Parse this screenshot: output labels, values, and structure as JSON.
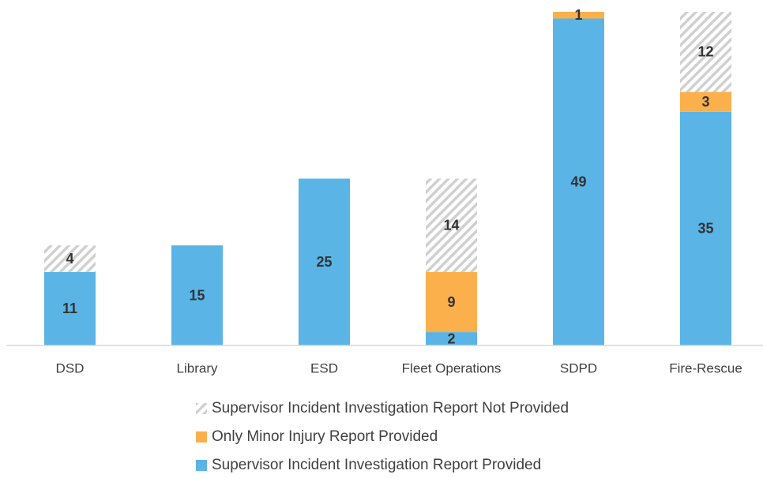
{
  "chart_data": {
    "type": "stacked_bar",
    "categories": [
      "DSD",
      "Library",
      "ESD",
      "Fleet Operations",
      "SDPD",
      "Fire-Rescue"
    ],
    "series": [
      {
        "name": "Supervisor Incident Investigation Report Provided",
        "color": "#5ab4e5",
        "values": [
          11,
          15,
          25,
          2,
          49,
          35
        ]
      },
      {
        "name": "Only Minor Injury Report Provided",
        "color": "#fbb04b",
        "values": [
          null,
          null,
          null,
          9,
          1,
          3
        ]
      },
      {
        "name": "Supervisor Incident Investigation Report Not Provided",
        "color": "#c8c8c8",
        "pattern": "hatch",
        "values": [
          4,
          null,
          null,
          14,
          null,
          12
        ]
      }
    ],
    "ylim": [
      0,
      50
    ]
  }
}
